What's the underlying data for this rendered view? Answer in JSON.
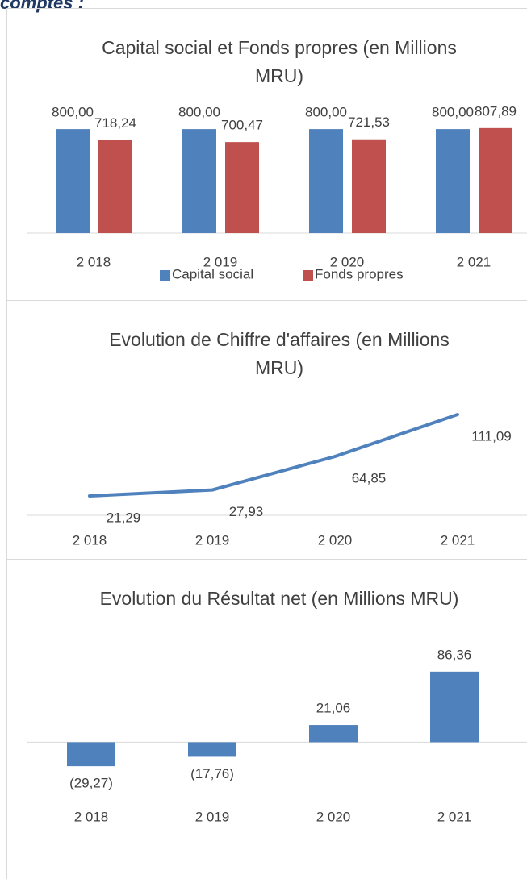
{
  "heading": "comptes :",
  "chart_data": [
    {
      "type": "bar",
      "title": "Capital social et Fonds propres (en Millions MRU)",
      "categories": [
        "2 018",
        "2 019",
        "2 020",
        "2 021"
      ],
      "series": [
        {
          "name": "Capital social",
          "color": "#4f81bd",
          "values": [
            800,
            800,
            800,
            800
          ],
          "value_labels": [
            "800,00",
            "800,00",
            "800,00",
            "800,00"
          ]
        },
        {
          "name": "Fonds propres",
          "color": "#c0504d",
          "values": [
            718.24,
            700.47,
            721.53,
            807.89
          ],
          "value_labels": [
            "718,24",
            "700,47",
            "721,53",
            "807,89"
          ]
        }
      ],
      "ylim": [
        0,
        900
      ],
      "legend": "bottom"
    },
    {
      "type": "line",
      "title": "Evolution de Chiffre d'affaires (en Millions MRU)",
      "categories": [
        "2 018",
        "2 019",
        "2 020",
        "2 021"
      ],
      "values": [
        21.29,
        27.93,
        64.85,
        111.09
      ],
      "value_labels": [
        "21,29",
        "27,93",
        "64,85",
        "111,09"
      ],
      "color": "#4f81bd",
      "ylim": [
        0,
        120
      ]
    },
    {
      "type": "bar",
      "title": "Evolution du Résultat net (en Millions MRU)",
      "categories": [
        "2 018",
        "2 019",
        "2 020",
        "2 021"
      ],
      "values": [
        -29.27,
        -17.76,
        21.06,
        86.36
      ],
      "value_labels": [
        "(29,27)",
        "(17,76)",
        "21,06",
        "86,36"
      ],
      "color": "#4f81bd",
      "ylim": [
        -40,
        100
      ]
    }
  ]
}
